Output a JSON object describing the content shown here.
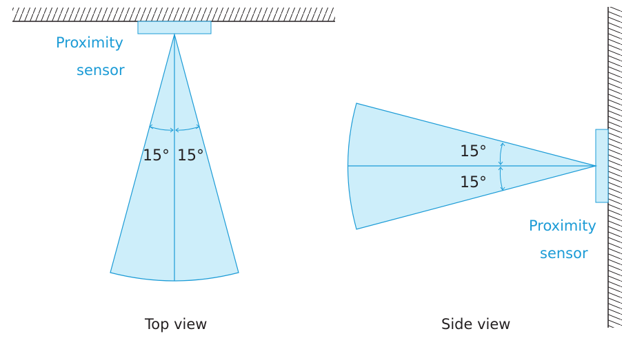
{
  "top_view": {
    "sensor_label_line1": "Proximity",
    "sensor_label_line2": "sensor",
    "angle_left": "15°",
    "angle_right": "15°",
    "caption": "Top view"
  },
  "side_view": {
    "sensor_label_line1": "Proximity",
    "sensor_label_line2": "sensor",
    "angle_upper": "15°",
    "angle_lower": "15°",
    "caption": "Side view"
  },
  "colors": {
    "beam_fill": "#cdeefa",
    "beam_stroke": "#1b9bd6",
    "label_blue": "#1b9bd6",
    "label_dark": "#231f20",
    "wall_hatch": "#231f20"
  }
}
